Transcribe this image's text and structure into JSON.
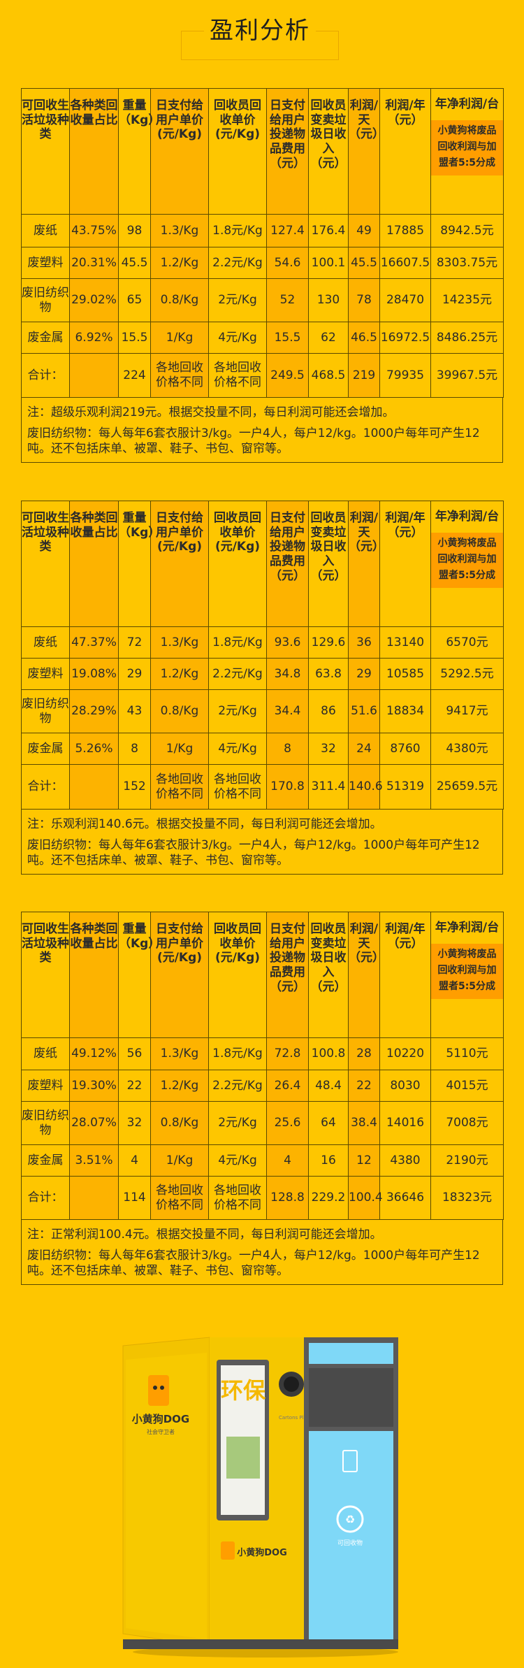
{
  "page_title": "盈利分析",
  "headers": {
    "type": "可回收生活垃圾种类",
    "ratio": "各种类回收量占比",
    "weight": "重量（Kg）",
    "user_price": "日支付给用户单价(元/Kg)",
    "collector_price": "回收员回收单价(元/Kg)",
    "user_fee": "日支付给用户投递物品费用（元）",
    "collector_income": "回收员变卖垃圾日收入（元）",
    "profit_day": "利润/天（元）",
    "profit_year": "利润/年（元）",
    "net_profit": "年净利润/台",
    "net_profit_sub": "小黄狗将废品回收利润与加盟者5:5分成"
  },
  "tables": [
    {
      "rows": [
        {
          "type": "废纸",
          "ratio": "43.75%",
          "weight": "98",
          "user_price": "1.3/Kg",
          "collector_price": "1.8元/Kg",
          "user_fee": "127.4",
          "collector_income": "176.4",
          "profit_day": "49",
          "profit_year": "17885",
          "net": "8942.5元"
        },
        {
          "type": "废塑料",
          "ratio": "20.31%",
          "weight": "45.5",
          "user_price": "1.2/Kg",
          "collector_price": "2.2元/Kg",
          "user_fee": "54.6",
          "collector_income": "100.1",
          "profit_day": "45.5",
          "profit_year": "16607.5",
          "net": "8303.75元"
        },
        {
          "type": "废旧纺织物",
          "ratio": "29.02%",
          "weight": "65",
          "user_price": "0.8/Kg",
          "collector_price": "2元/Kg",
          "user_fee": "52",
          "collector_income": "130",
          "profit_day": "78",
          "profit_year": "28470",
          "net": "14235元"
        },
        {
          "type": "废金属",
          "ratio": "6.92%",
          "weight": "15.5",
          "user_price": "1/Kg",
          "collector_price": "4元/Kg",
          "user_fee": "15.5",
          "collector_income": "62",
          "profit_day": "46.5",
          "profit_year": "16972.5",
          "net": "8486.25元"
        }
      ],
      "total": {
        "label": "合计：",
        "ratio": "",
        "weight": "224",
        "user_price": "各地回收价格不同",
        "collector_price": "各地回收价格不同",
        "user_fee": "249.5",
        "collector_income": "468.5",
        "profit_day": "219",
        "profit_year": "79935",
        "net": "39967.5元"
      },
      "note1": "注：超级乐观利润219元。根据交投量不同，每日利润可能还会增加。",
      "note2": "废旧纺织物：每人每年6套衣服计3/kg。一户4人，每户12/kg。1000户每年可产生12吨。还不包括床单、被罩、鞋子、书包、窗帘等。"
    },
    {
      "rows": [
        {
          "type": "废纸",
          "ratio": "47.37%",
          "weight": "72",
          "user_price": "1.3/Kg",
          "collector_price": "1.8元/Kg",
          "user_fee": "93.6",
          "collector_income": "129.6",
          "profit_day": "36",
          "profit_year": "13140",
          "net": "6570元"
        },
        {
          "type": "废塑料",
          "ratio": "19.08%",
          "weight": "29",
          "user_price": "1.2/Kg",
          "collector_price": "2.2元/Kg",
          "user_fee": "34.8",
          "collector_income": "63.8",
          "profit_day": "29",
          "profit_year": "10585",
          "net": "5292.5元"
        },
        {
          "type": "废旧纺织物",
          "ratio": "28.29%",
          "weight": "43",
          "user_price": "0.8/Kg",
          "collector_price": "2元/Kg",
          "user_fee": "34.4",
          "collector_income": "86",
          "profit_day": "51.6",
          "profit_year": "18834",
          "net": "9417元"
        },
        {
          "type": "废金属",
          "ratio": "5.26%",
          "weight": "8",
          "user_price": "1/Kg",
          "collector_price": "4元/Kg",
          "user_fee": "8",
          "collector_income": "32",
          "profit_day": "24",
          "profit_year": "8760",
          "net": "4380元"
        }
      ],
      "total": {
        "label": "合计：",
        "ratio": "",
        "weight": "152",
        "user_price": "各地回收价格不同",
        "collector_price": "各地回收价格不同",
        "user_fee": "170.8",
        "collector_income": "311.4",
        "profit_day": "140.6",
        "profit_year": "51319",
        "net": "25659.5元"
      },
      "note1": "注：乐观利润140.6元。根据交投量不同，每日利润可能还会增加。",
      "note2": "废旧纺织物：每人每年6套衣服计3/kg。一户4人，每户12/kg。1000户每年可产生12吨。还不包括床单、被罩、鞋子、书包、窗帘等。"
    },
    {
      "rows": [
        {
          "type": "废纸",
          "ratio": "49.12%",
          "weight": "56",
          "user_price": "1.3/Kg",
          "collector_price": "1.8元/Kg",
          "user_fee": "72.8",
          "collector_income": "100.8",
          "profit_day": "28",
          "profit_year": "10220",
          "net": "5110元"
        },
        {
          "type": "废塑料",
          "ratio": "19.30%",
          "weight": "22",
          "user_price": "1.2/Kg",
          "collector_price": "2.2元/Kg",
          "user_fee": "26.4",
          "collector_income": "48.4",
          "profit_day": "22",
          "profit_year": "8030",
          "net": "4015元"
        },
        {
          "type": "废旧纺织物",
          "ratio": "28.07%",
          "weight": "32",
          "user_price": "0.8/Kg",
          "collector_price": "2元/Kg",
          "user_fee": "25.6",
          "collector_income": "64",
          "profit_day": "38.4",
          "profit_year": "14016",
          "net": "7008元"
        },
        {
          "type": "废金属",
          "ratio": "3.51%",
          "weight": "4",
          "user_price": "1/Kg",
          "collector_price": "4元/Kg",
          "user_fee": "4",
          "collector_income": "16",
          "profit_day": "12",
          "profit_year": "4380",
          "net": "2190元"
        }
      ],
      "total": {
        "label": "合计：",
        "ratio": "",
        "weight": "114",
        "user_price": "各地回收价格不同",
        "collector_price": "各地回收价格不同",
        "user_fee": "128.8",
        "collector_income": "229.2",
        "profit_day": "100.4",
        "profit_year": "36646",
        "net": "18323元"
      },
      "note1": "注：正常利润100.4元。根据交投量不同，每日利润可能还会增加。",
      "note2": "废旧纺织物：每人每年6套衣服计3/kg。一户4人，每户12/kg。1000户每年可产生12吨。还不包括床单、被罩、鞋子、书包、窗帘等。"
    }
  ],
  "machine": {
    "brand": "小黄狗DOG",
    "brand_sub": "社会守卫者",
    "poster_text": "环保",
    "panel_label": "Cartons Plastic Cans",
    "screen_label": "可回收物",
    "colors": {
      "body": "#f7c600",
      "screen": "#7fd8f7",
      "frame": "#5a5a5a",
      "accent": "#ff9e00"
    }
  }
}
